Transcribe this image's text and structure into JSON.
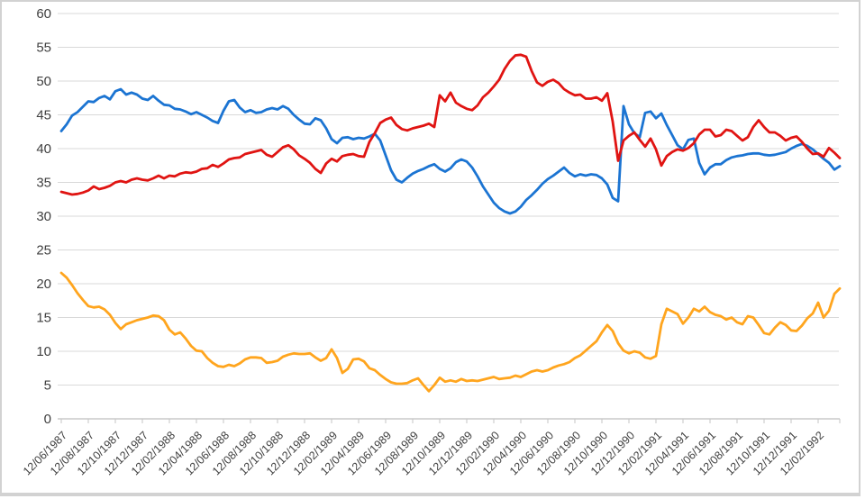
{
  "chart_data": {
    "type": "line",
    "title": "",
    "xlabel": "",
    "ylabel": "",
    "ylim": [
      0,
      60
    ],
    "ytick_step": 5,
    "grid": true,
    "legend": "none",
    "y_tick_labels": [
      "0",
      "5",
      "10",
      "15",
      "20",
      "25",
      "30",
      "35",
      "40",
      "45",
      "50",
      "55",
      "60"
    ],
    "x_tick_labels": [
      "12/06/1987",
      "12/08/1987",
      "12/10/1987",
      "12/12/1987",
      "12/02/1988",
      "12/04/1988",
      "12/06/1988",
      "12/08/1988",
      "12/10/1988",
      "12/12/1988",
      "12/02/1989",
      "12/04/1989",
      "12/06/1989",
      "12/08/1989",
      "12/10/1989",
      "12/12/1989",
      "12/02/1990",
      "12/04/1990",
      "12/06/1990",
      "12/08/1990",
      "12/10/1990",
      "12/12/1990",
      "12/02/1991",
      "12/04/1991",
      "12/06/1991",
      "12/08/1991",
      "12/10/1991",
      "12/12/1991",
      "12/02/1992"
    ],
    "samples_per_tick_interval": 5,
    "x_note": "three daily time series sampled ~every 12 days starting at first tick date",
    "series": [
      {
        "name": "blue",
        "color": "#1b74d2",
        "values": [
          42.6,
          43.6,
          44.9,
          45.4,
          46.2,
          47.0,
          46.9,
          47.5,
          47.8,
          47.3,
          48.5,
          48.8,
          48.0,
          48.3,
          48.0,
          47.4,
          47.2,
          47.8,
          47.1,
          46.5,
          46.4,
          45.9,
          45.8,
          45.5,
          45.1,
          45.4,
          45.0,
          44.6,
          44.1,
          43.8,
          45.6,
          47.0,
          47.2,
          46.1,
          45.4,
          45.7,
          45.3,
          45.4,
          45.8,
          46.0,
          45.8,
          46.3,
          45.9,
          45.0,
          44.3,
          43.7,
          43.6,
          44.5,
          44.2,
          43.0,
          41.4,
          40.8,
          41.6,
          41.7,
          41.4,
          41.6,
          41.5,
          41.8,
          42.2,
          41.2,
          39.0,
          36.8,
          35.4,
          35.0,
          35.7,
          36.3,
          36.7,
          37.0,
          37.4,
          37.7,
          37.0,
          36.6,
          37.1,
          38.0,
          38.4,
          38.1,
          37.2,
          35.9,
          34.4,
          33.2,
          32.0,
          31.2,
          30.7,
          30.4,
          30.7,
          31.4,
          32.4,
          33.1,
          33.9,
          34.8,
          35.5,
          36.0,
          36.6,
          37.2,
          36.4,
          35.9,
          36.2,
          36.0,
          36.2,
          36.1,
          35.6,
          34.7,
          32.7,
          32.2,
          46.3,
          43.6,
          42.3,
          41.7,
          45.3,
          45.5,
          44.5,
          45.2,
          43.5,
          42.0,
          40.5,
          39.9,
          41.3,
          41.5,
          37.9,
          36.2,
          37.2,
          37.7,
          37.7,
          38.3,
          38.7,
          38.9,
          39.0,
          39.2,
          39.3,
          39.3,
          39.1,
          39.0,
          39.1,
          39.3,
          39.5,
          40.0,
          40.4,
          40.7,
          40.4,
          39.9,
          39.2,
          38.5,
          37.9,
          36.9,
          37.4
        ]
      },
      {
        "name": "red",
        "color": "#e01412",
        "values": [
          33.6,
          33.4,
          33.2,
          33.3,
          33.5,
          33.8,
          34.4,
          34.0,
          34.2,
          34.5,
          35.0,
          35.2,
          35.0,
          35.4,
          35.6,
          35.4,
          35.3,
          35.6,
          36.0,
          35.6,
          36.0,
          35.9,
          36.3,
          36.5,
          36.4,
          36.6,
          37.0,
          37.1,
          37.6,
          37.3,
          37.8,
          38.4,
          38.6,
          38.7,
          39.2,
          39.4,
          39.6,
          39.8,
          39.1,
          38.8,
          39.5,
          40.2,
          40.5,
          39.9,
          39.0,
          38.5,
          37.9,
          37.0,
          36.4,
          37.8,
          38.5,
          38.1,
          38.9,
          39.1,
          39.2,
          38.9,
          38.8,
          41.0,
          42.3,
          43.8,
          44.3,
          44.6,
          43.5,
          42.9,
          42.7,
          43.0,
          43.2,
          43.4,
          43.7,
          43.2,
          47.9,
          47.0,
          48.3,
          46.8,
          46.3,
          45.9,
          45.7,
          46.4,
          47.6,
          48.3,
          49.2,
          50.2,
          51.8,
          53.0,
          53.8,
          53.9,
          53.6,
          51.5,
          49.8,
          49.3,
          49.9,
          50.2,
          49.7,
          48.8,
          48.3,
          47.9,
          48.0,
          47.4,
          47.4,
          47.6,
          47.1,
          48.2,
          44.0,
          38.2,
          41.2,
          41.9,
          42.4,
          41.3,
          40.3,
          41.5,
          39.9,
          37.5,
          38.9,
          39.5,
          39.9,
          39.7,
          40.1,
          40.8,
          42.1,
          42.8,
          42.8,
          41.8,
          42.0,
          42.8,
          42.6,
          41.9,
          41.2,
          41.7,
          43.2,
          44.2,
          43.2,
          42.4,
          42.4,
          41.9,
          41.2,
          41.6,
          41.8,
          41.0,
          40.0,
          39.2,
          39.3,
          38.8,
          40.1,
          39.4,
          38.6
        ]
      },
      {
        "name": "orange",
        "color": "#ffa51e",
        "values": [
          21.6,
          20.9,
          19.8,
          18.6,
          17.6,
          16.7,
          16.5,
          16.6,
          16.2,
          15.4,
          14.2,
          13.3,
          14.0,
          14.3,
          14.6,
          14.8,
          15.0,
          15.3,
          15.2,
          14.6,
          13.2,
          12.5,
          12.8,
          11.9,
          10.8,
          10.1,
          10.0,
          9.0,
          8.3,
          7.8,
          7.7,
          8.0,
          7.8,
          8.2,
          8.8,
          9.1,
          9.1,
          9.0,
          8.3,
          8.4,
          8.6,
          9.2,
          9.5,
          9.7,
          9.6,
          9.6,
          9.7,
          9.1,
          8.6,
          9.0,
          10.3,
          9.0,
          6.8,
          7.4,
          8.8,
          8.9,
          8.5,
          7.5,
          7.2,
          6.5,
          5.9,
          5.4,
          5.2,
          5.2,
          5.3,
          5.7,
          6.0,
          5.0,
          4.1,
          5.0,
          6.1,
          5.5,
          5.7,
          5.5,
          5.9,
          5.6,
          5.7,
          5.6,
          5.8,
          6.0,
          6.2,
          5.9,
          6.0,
          6.1,
          6.4,
          6.2,
          6.6,
          7.0,
          7.2,
          7.0,
          7.2,
          7.6,
          7.9,
          8.1,
          8.4,
          9.0,
          9.4,
          10.1,
          10.8,
          11.5,
          12.8,
          13.9,
          13.0,
          11.2,
          10.1,
          9.7,
          10.0,
          9.8,
          9.1,
          8.9,
          9.3,
          14.0,
          16.3,
          15.9,
          15.5,
          14.1,
          15.0,
          16.3,
          15.9,
          16.6,
          15.8,
          15.4,
          15.2,
          14.7,
          15.0,
          14.3,
          14.0,
          15.2,
          15.0,
          13.9,
          12.7,
          12.5,
          13.5,
          14.3,
          13.9,
          13.1,
          13.0,
          13.8,
          14.9,
          15.6,
          17.2,
          15.0,
          16.0,
          18.5,
          19.3
        ]
      }
    ]
  },
  "colors": {
    "grid": "#d9d9d9",
    "axis": "#bfbfbf",
    "tick_mark": "#c6c6c6",
    "tick_text": "#404040",
    "frame": "#d2d2d2",
    "background": "#ffffff"
  }
}
